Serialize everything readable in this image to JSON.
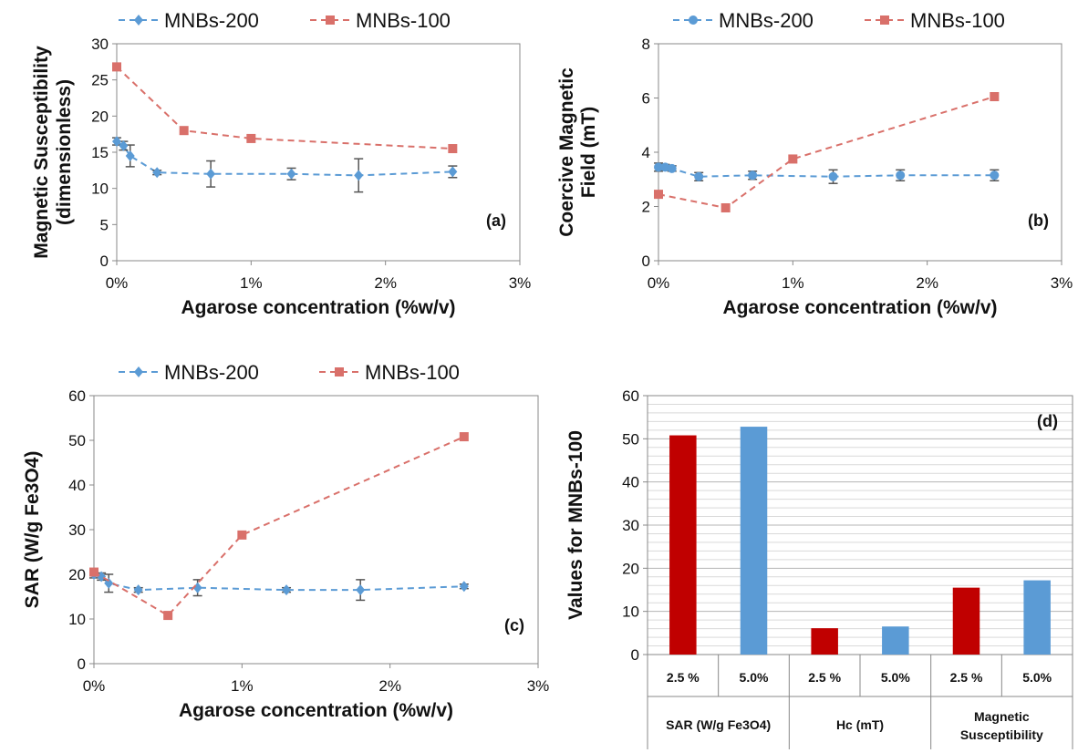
{
  "colors": {
    "mnbs200": "#5b9bd5",
    "mnbs100": "#d9706a",
    "bar_red": "#c00000",
    "bar_blue": "#5b9bd5",
    "errbar": "#555555"
  },
  "chart_data": [
    {
      "id": "a",
      "type": "scatter",
      "panel_label": "(a)",
      "xlabel": "Agarose concentration (%w/v)",
      "ylabel_lines": [
        "Magnetic Susceptibility",
        "(dimensionless)"
      ],
      "xlim": [
        0,
        3
      ],
      "ylim": [
        0,
        30
      ],
      "xticks": [
        0,
        1,
        2,
        3
      ],
      "xtick_labels": [
        "0%",
        "1%",
        "2%",
        "3%"
      ],
      "yticks": [
        0,
        5,
        10,
        15,
        20,
        25,
        30
      ],
      "legend_position": "top",
      "series": [
        {
          "name": "MNBs-200",
          "marker": "diamond",
          "x": [
            0,
            0.05,
            0.1,
            0.3,
            0.7,
            1.3,
            1.8,
            2.5
          ],
          "y": [
            16.5,
            15.9,
            14.5,
            12.2,
            12.0,
            12.0,
            11.8,
            12.3
          ],
          "err": [
            0.5,
            0.6,
            1.5,
            0.3,
            1.8,
            0.8,
            2.3,
            0.8
          ]
        },
        {
          "name": "MNBs-100",
          "marker": "square",
          "x": [
            0,
            0.5,
            1.0,
            2.5
          ],
          "y": [
            26.8,
            18.0,
            16.9,
            15.5
          ]
        }
      ]
    },
    {
      "id": "b",
      "type": "scatter",
      "panel_label": "(b)",
      "xlabel": "Agarose concentration (%w/v)",
      "ylabel_lines": [
        "Coercive Magnetic",
        "Field (mT)"
      ],
      "xlim": [
        0,
        3
      ],
      "ylim": [
        0,
        8
      ],
      "xticks": [
        0,
        1,
        2,
        3
      ],
      "xtick_labels": [
        "0%",
        "1%",
        "2%",
        "3%"
      ],
      "yticks": [
        0,
        2,
        4,
        6,
        8
      ],
      "legend_position": "top",
      "series": [
        {
          "name": "MNBs-200",
          "marker": "circle",
          "x": [
            0,
            0.05,
            0.1,
            0.3,
            0.7,
            1.3,
            1.8,
            2.5
          ],
          "y": [
            3.45,
            3.45,
            3.4,
            3.1,
            3.15,
            3.1,
            3.15,
            3.15
          ],
          "err": [
            0.15,
            0.1,
            0.1,
            0.15,
            0.15,
            0.25,
            0.2,
            0.2
          ]
        },
        {
          "name": "MNBs-100",
          "marker": "square",
          "x": [
            0,
            0.5,
            1.0,
            2.5
          ],
          "y": [
            2.45,
            1.95,
            3.75,
            6.05
          ]
        }
      ]
    },
    {
      "id": "c",
      "type": "scatter",
      "panel_label": "(c)",
      "xlabel": "Agarose concentration (%w/v)",
      "ylabel_lines": [
        "SAR (W/g Fe3O4)"
      ],
      "xlim": [
        0,
        3
      ],
      "ylim": [
        0,
        60
      ],
      "xticks": [
        0,
        1,
        2,
        3
      ],
      "xtick_labels": [
        "0%",
        "1%",
        "2%",
        "3%"
      ],
      "yticks": [
        0,
        10,
        20,
        30,
        40,
        50,
        60
      ],
      "legend_position": "top",
      "series": [
        {
          "name": "MNBs-200",
          "marker": "diamond",
          "x": [
            0,
            0.05,
            0.1,
            0.3,
            0.7,
            1.3,
            1.8,
            2.5
          ],
          "y": [
            20.0,
            19.5,
            18.0,
            16.5,
            17.0,
            16.5,
            16.5,
            17.3
          ],
          "err": [
            0.8,
            0.8,
            2.0,
            0.5,
            1.8,
            0.5,
            2.3,
            0.5
          ]
        },
        {
          "name": "MNBs-100",
          "marker": "square",
          "x": [
            0,
            0.5,
            1.0,
            2.5
          ],
          "y": [
            20.5,
            10.8,
            28.8,
            50.8
          ]
        }
      ]
    },
    {
      "id": "d",
      "type": "bar",
      "panel_label": "(d)",
      "ylabel": "Values for MNBs-100",
      "ylim": [
        0,
        60
      ],
      "yticks": [
        0,
        10,
        20,
        30,
        40,
        50,
        60
      ],
      "groups": [
        {
          "label": "SAR (W/g Fe3O4)",
          "label_lines": [
            "SAR (W/g Fe3O4)"
          ],
          "bars": [
            {
              "label": "2.5 %",
              "value": 50.8,
              "color": "red"
            },
            {
              "label": "5.0%",
              "value": 52.8,
              "color": "blue"
            }
          ]
        },
        {
          "label": "Hc (mT)",
          "label_lines": [
            "Hc (mT)"
          ],
          "bars": [
            {
              "label": "2.5 %",
              "value": 6.1,
              "color": "red"
            },
            {
              "label": "5.0%",
              "value": 6.5,
              "color": "blue"
            }
          ]
        },
        {
          "label": "Magnetic Susceptibility",
          "label_lines": [
            "Magnetic",
            "Susceptibility"
          ],
          "bars": [
            {
              "label": "2.5 %",
              "value": 15.5,
              "color": "red"
            },
            {
              "label": "5.0%",
              "value": 17.2,
              "color": "blue"
            }
          ]
        }
      ]
    }
  ]
}
